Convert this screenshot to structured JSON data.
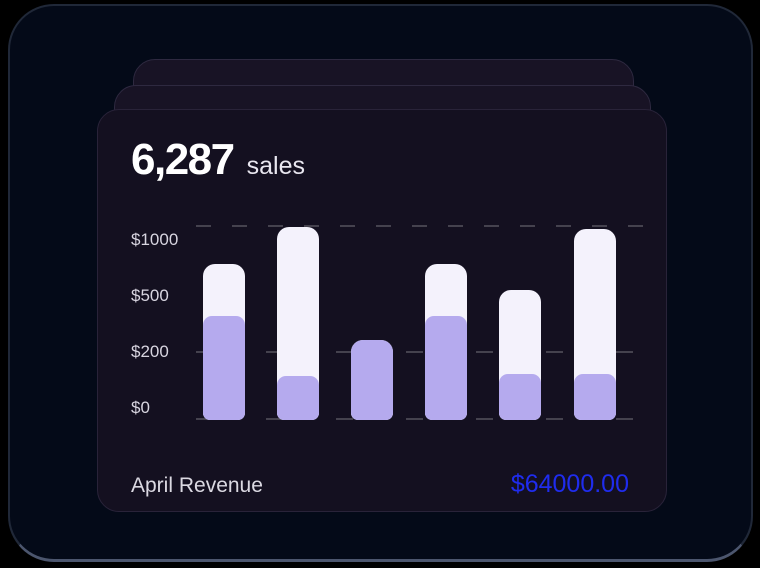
{
  "card": {
    "headline_value": "6,287",
    "headline_unit": "sales",
    "footer_label": "April Revenue",
    "footer_value": "$64000.00"
  },
  "chart_data": {
    "type": "bar",
    "stacked": true,
    "title": "6,287 sales",
    "xlabel": "",
    "ylabel": "",
    "categories": [
      "",
      "",
      "",
      "",
      "",
      ""
    ],
    "series": [
      {
        "name": "lower-segment",
        "color": "#b5aaee",
        "values": [
          395,
          115,
          265,
          395,
          120,
          120
        ]
      },
      {
        "name": "upper-segment",
        "color": "#f4f2fc",
        "values": [
          395,
          1005,
          0,
          395,
          430,
          980
        ]
      }
    ],
    "totals": [
      790,
      1120,
      265,
      790,
      550,
      1100
    ],
    "y_ticks": [
      {
        "label": "$0",
        "value": 0
      },
      {
        "label": "$200",
        "value": 200
      },
      {
        "label": "$500",
        "value": 500
      },
      {
        "label": "$1000",
        "value": 1000
      }
    ],
    "y_scale": "non-linear, ticks evenly spaced",
    "grid": "dashed horizontal lines at top, $200 level and baseline",
    "legend": "none"
  },
  "colors": {
    "background": "#000000",
    "window_bg": "#040a18",
    "card_bg": "#141020",
    "stacked_card_bg": "#181325",
    "bar_lower": "#b5aaee",
    "bar_upper": "#f4f2fc",
    "gridline": "#45424e",
    "headline_text": "#ffffff",
    "axis_text": "#d8d5e0",
    "footer_label_text": "#dbd9e2",
    "revenue_blue": "#1f2cee"
  }
}
